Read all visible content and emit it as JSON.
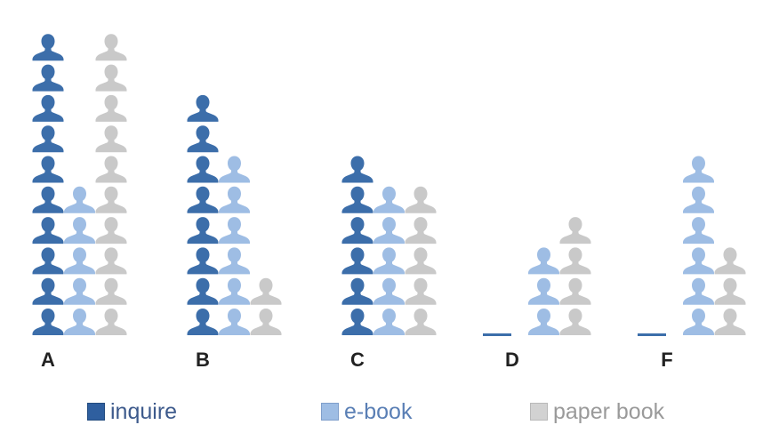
{
  "chart_data": {
    "type": "bar",
    "chart_style": "pictograph",
    "categories": [
      "A",
      "B",
      "C",
      "D",
      "F"
    ],
    "series": [
      {
        "name": "inquire",
        "values": [
          10,
          8,
          6,
          0,
          0
        ],
        "color": "#3c6eaa",
        "legend_color": "#2f5f9f",
        "label_color": "#3d5a8c"
      },
      {
        "name": "e-book",
        "values": [
          5,
          6,
          5,
          3,
          6
        ],
        "color": "#9ebde4",
        "legend_color": "#9ebde4",
        "label_color": "#5a7fb5"
      },
      {
        "name": "paper book",
        "values": [
          10,
          2,
          5,
          4,
          3
        ],
        "color": "#c9c9c9",
        "legend_color": "#d2d2d2",
        "label_color": "#9a9a9a"
      }
    ],
    "icon": "person-icon",
    "zero_marker": "flat line shown where a value is 0",
    "legend_position": "bottom"
  }
}
